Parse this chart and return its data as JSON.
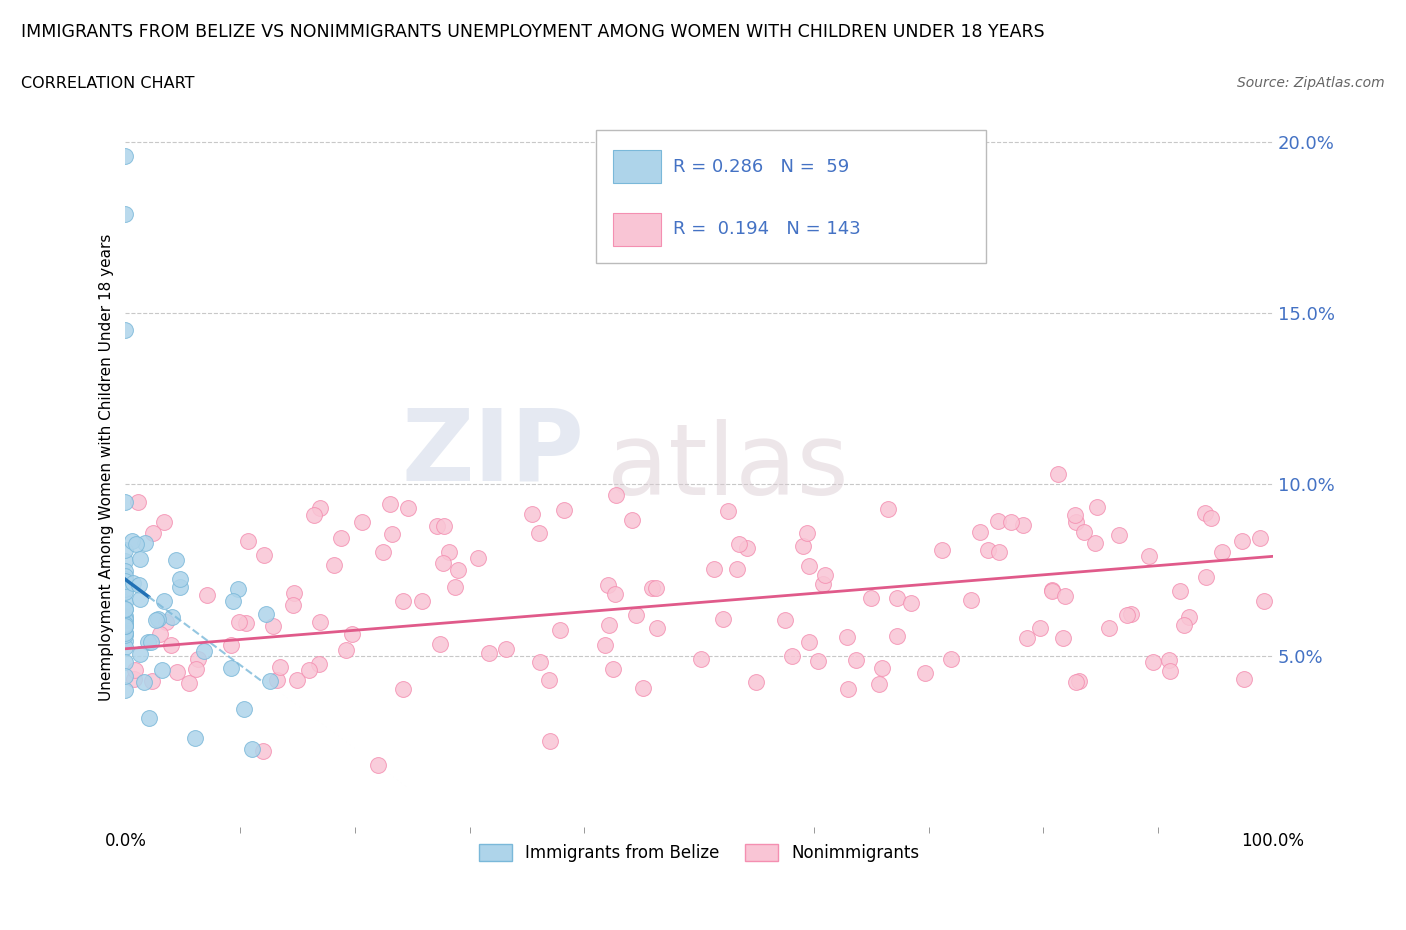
{
  "title": "IMMIGRANTS FROM BELIZE VS NONIMMIGRANTS UNEMPLOYMENT AMONG WOMEN WITH CHILDREN UNDER 18 YEARS",
  "subtitle": "CORRELATION CHART",
  "source": "Source: ZipAtlas.com",
  "ylabel": "Unemployment Among Women with Children Under 18 years",
  "y_ticks": [
    0.05,
    0.1,
    0.15,
    0.2
  ],
  "y_tick_labels": [
    "5.0%",
    "10.0%",
    "15.0%",
    "20.0%"
  ],
  "watermark_zip": "ZIP",
  "watermark_atlas": "atlas",
  "blue_color": "#7ab8d9",
  "blue_fill": "#aed4ea",
  "pink_color": "#f48fb1",
  "pink_fill": "#f9c5d5",
  "blue_line_color": "#2171b5",
  "pink_line_color": "#e05a8a",
  "tick_color": "#4472c4",
  "legend_blue_r": "R = 0.286",
  "legend_blue_n": "N =  59",
  "legend_pink_r": "R =  0.194",
  "legend_pink_n": "N = 143",
  "xlim": [
    0.0,
    1.0
  ],
  "ylim": [
    0.0,
    0.21
  ],
  "background_color": "#ffffff"
}
